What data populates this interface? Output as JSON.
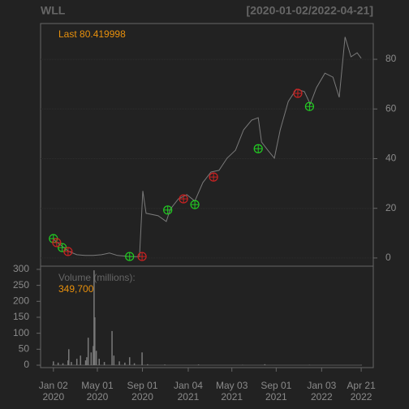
{
  "chart_data": [
    {
      "type": "line",
      "title": "WLL",
      "subtitle": "[2020-01-02/2022-04-21]",
      "annotation": "Last 80.419998",
      "color": "#7a7a7a",
      "grid": true,
      "xlim": [
        "2019-11-28",
        "2022-05-24"
      ],
      "ylim": [
        -3.3,
        94.4
      ],
      "yticks": [
        0,
        20,
        40,
        60,
        80
      ],
      "x": [
        "2020-01-02",
        "2020-01-22",
        "2020-02-13",
        "2020-03-06",
        "2020-03-28",
        "2020-04-20",
        "2020-05-12",
        "2020-06-03",
        "2020-06-25",
        "2020-07-28",
        "2020-08-24",
        "2020-09-02",
        "2020-09-11",
        "2020-10-14",
        "2020-11-05",
        "2020-11-16",
        "2020-12-08",
        "2020-12-31",
        "2021-01-22",
        "2021-02-13",
        "2021-03-07",
        "2021-03-29",
        "2021-04-20",
        "2021-05-13",
        "2021-06-04",
        "2021-06-26",
        "2021-07-14",
        "2021-07-23",
        "2021-08-09",
        "2021-08-27",
        "2021-09-12",
        "2021-10-04",
        "2021-10-26",
        "2021-11-17",
        "2021-12-03",
        "2021-12-20",
        "2022-01-12",
        "2022-02-03",
        "2022-02-20",
        "2022-03-08",
        "2022-03-24",
        "2022-04-10",
        "2022-04-21"
      ],
      "values": [
        7.5,
        5.2,
        2.6,
        1.3,
        1,
        1,
        1.3,
        2,
        1,
        0.6,
        0.5,
        27,
        18,
        17,
        14.7,
        19.6,
        23.8,
        25.5,
        22.9,
        30.4,
        34.6,
        35.3,
        40.2,
        43.4,
        51.6,
        55.5,
        56.5,
        46.7,
        43.4,
        40.2,
        51.6,
        63,
        68,
        67,
        62,
        68.6,
        74.4,
        72.8,
        64.7,
        89,
        81,
        82.6,
        80.42
      ],
      "markers": [
        {
          "color": "#22cc22",
          "x": [
            "2020-01-02",
            "2020-01-26",
            "2020-07-28",
            "2020-11-09",
            "2021-01-22",
            "2021-07-14",
            "2021-12-01"
          ],
          "values": [
            7.8,
            4.2,
            0.6,
            19.3,
            21.5,
            44,
            61
          ]
        },
        {
          "color": "#cc2222",
          "x": [
            "2020-01-11",
            "2020-02-11",
            "2020-08-31",
            "2020-12-22",
            "2021-03-14",
            "2021-10-30"
          ],
          "values": [
            6.2,
            2.6,
            0.6,
            23.8,
            32.6,
            66.3
          ]
        }
      ]
    },
    {
      "type": "bar",
      "annotation": "Volume (millions):",
      "annotation_value": "349,700",
      "color": "#7a7a7a",
      "xlim": [
        "2019-11-28",
        "2022-05-24"
      ],
      "ylim": [
        -7.6,
        310
      ],
      "yticks": [
        0,
        50,
        100,
        150,
        200,
        250,
        300
      ],
      "xticks": [
        {
          "value": "2020-01-02",
          "label": [
            "Jan 02",
            "2020"
          ]
        },
        {
          "value": "2020-05-01",
          "label": [
            "May 01",
            "2020"
          ]
        },
        {
          "value": "2020-09-01",
          "label": [
            "Sep 01",
            "2020"
          ]
        },
        {
          "value": "2021-01-04",
          "label": [
            "Jan 04",
            "2021"
          ]
        },
        {
          "value": "2021-05-03",
          "label": [
            "May 03",
            "2021"
          ]
        },
        {
          "value": "2021-09-01",
          "label": [
            "Sep 01",
            "2021"
          ]
        },
        {
          "value": "2022-01-03",
          "label": [
            "Jan 03",
            "2022"
          ]
        },
        {
          "value": "2022-04-21",
          "label": [
            "Apr 21",
            "2022"
          ]
        }
      ],
      "x": [
        "2020-01-02",
        "2020-01-15",
        "2020-01-28",
        "2020-02-11",
        "2020-02-13",
        "2020-02-20",
        "2020-03-06",
        "2020-03-16",
        "2020-03-30",
        "2020-04-02",
        "2020-04-06",
        "2020-04-14",
        "2020-04-20",
        "2020-04-22",
        "2020-04-24",
        "2020-04-28",
        "2020-05-06",
        "2020-05-20",
        "2020-06-10",
        "2020-06-15",
        "2020-06-30",
        "2020-07-15",
        "2020-07-28",
        "2020-08-10",
        "2020-08-31",
        "2020-09-15",
        "2020-11-01",
        "2021-02-01",
        "2021-06-01",
        "2021-08-01",
        "2021-12-01",
        "2022-04-21"
      ],
      "values": [
        12,
        8,
        6,
        15,
        50,
        10,
        20,
        30,
        15,
        25,
        86,
        40,
        60,
        297,
        150,
        45,
        20,
        10,
        107,
        30,
        12,
        8,
        25,
        6,
        40,
        3,
        2,
        2,
        1,
        3,
        1,
        1
      ]
    }
  ]
}
